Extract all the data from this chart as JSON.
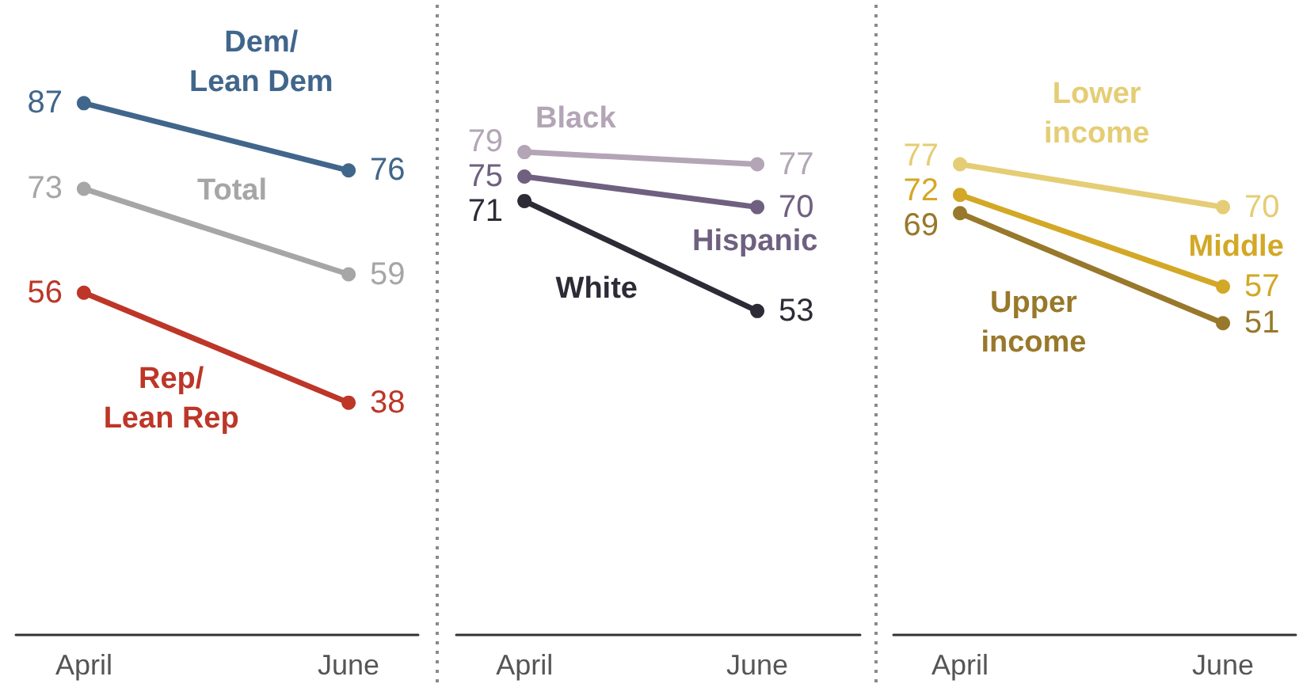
{
  "chart_data": [
    {
      "type": "line",
      "categories": [
        "April",
        "June"
      ],
      "series": [
        {
          "name": "Dem/\nLean Dem",
          "color": "#41668c",
          "values": [
            87,
            76
          ]
        },
        {
          "name": "Total",
          "color": "#a6a6a6",
          "values": [
            73,
            59
          ]
        },
        {
          "name": "Rep/\nLean Rep",
          "color": "#bd3628",
          "values": [
            56,
            38
          ]
        }
      ],
      "tick_labels": "x",
      "data_labels": true,
      "marker": "circle"
    },
    {
      "type": "line",
      "categories": [
        "April",
        "June"
      ],
      "series": [
        {
          "name": "Black",
          "color": "#b3a5b6",
          "values": [
            79,
            77
          ]
        },
        {
          "name": "Hispanic",
          "color": "#6f6080",
          "values": [
            75,
            70
          ]
        },
        {
          "name": "White",
          "color": "#2d2b36",
          "values": [
            71,
            53
          ]
        }
      ],
      "tick_labels": "x",
      "data_labels": true,
      "marker": "circle"
    },
    {
      "type": "line",
      "categories": [
        "April",
        "June"
      ],
      "series": [
        {
          "name": "Lower\nincome",
          "color": "#e5cd75",
          "values": [
            77,
            70
          ]
        },
        {
          "name": "Middle",
          "color": "#d3a826",
          "values": [
            72,
            57
          ]
        },
        {
          "name": "Upper\nincome",
          "color": "#98782a",
          "values": [
            69,
            51
          ]
        }
      ],
      "tick_labels": "x",
      "data_labels": true,
      "marker": "circle"
    }
  ]
}
